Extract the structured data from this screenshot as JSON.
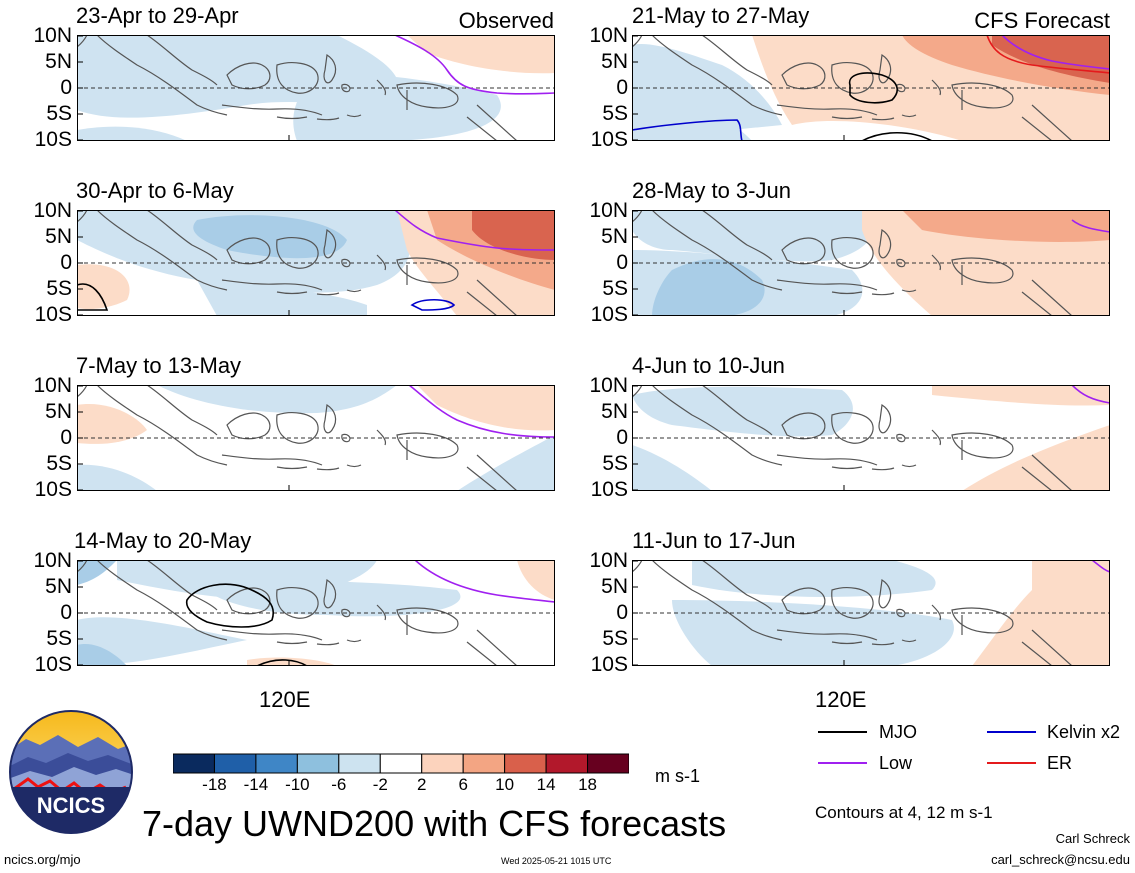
{
  "panels": [
    {
      "id": "p1",
      "title": "23-Apr to 29-Apr",
      "label": "Observed",
      "mjo": false,
      "kelvin": false
    },
    {
      "id": "p2",
      "title": "30-Apr to 6-May",
      "label": "",
      "mjo": false,
      "kelvin": true
    },
    {
      "id": "p3",
      "title": "7-May to 13-May",
      "label": "",
      "mjo": false,
      "kelvin": false
    },
    {
      "id": "p4",
      "title": "14-May to 20-May",
      "label": "",
      "mjo": true,
      "kelvin": false
    },
    {
      "id": "p5",
      "title": "21-May to 27-May",
      "label": "CFS Forecast",
      "mjo": true,
      "kelvin": true
    },
    {
      "id": "p6",
      "title": "28-May to 3-Jun",
      "label": "",
      "mjo": false,
      "kelvin": false
    },
    {
      "id": "p7",
      "title": "4-Jun to 10-Jun",
      "label": "",
      "mjo": false,
      "kelvin": false
    },
    {
      "id": "p8",
      "title": "11-Jun to 17-Jun",
      "label": "",
      "mjo": false,
      "kelvin": false
    }
  ],
  "y_ticks": [
    "10N",
    "5N",
    "0",
    "5S",
    "10S"
  ],
  "x_tick": "120E",
  "colorbar": {
    "ticks": [
      "-18",
      "-14",
      "-10",
      "-6",
      "-2",
      "2",
      "6",
      "10",
      "14",
      "18"
    ],
    "colors": [
      "#0a2a5e",
      "#1f5fa8",
      "#3f86c6",
      "#8ec0de",
      "#cde3f0",
      "#ffffff",
      "#fcd3bd",
      "#f3a583",
      "#d9604b",
      "#b2182b",
      "#67001f"
    ],
    "units": "m s-1"
  },
  "legend": {
    "items": [
      {
        "label": "MJO",
        "color": "#000000"
      },
      {
        "label": "Kelvin x2",
        "color": "#0000cc"
      },
      {
        "label": "Low",
        "color": "#a020f0"
      },
      {
        "label": "ER",
        "color": "#e41a1c"
      }
    ],
    "contours_note": "Contours at 4, 12 m s-1"
  },
  "title": "7-day UWND200 with CFS forecasts",
  "logo_text": "NCICS",
  "footer": {
    "left": "ncics.org/mjo",
    "center": "Wed 2025-05-21 1015 UTC",
    "author": "Carl Schreck",
    "email": "carl_schreck@ncsu.edu"
  }
}
